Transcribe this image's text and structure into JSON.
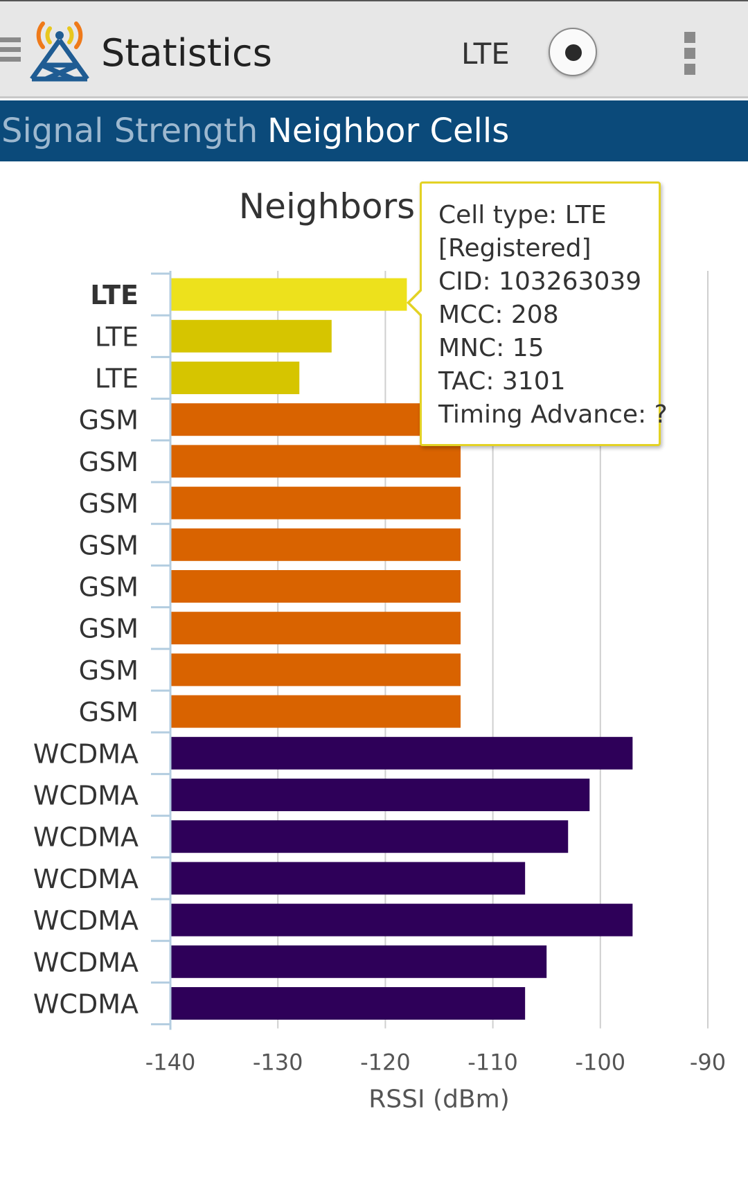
{
  "app_bar": {
    "title": "Statistics",
    "network_type": "LTE",
    "icons": {
      "drawer": "menu-icon",
      "logo": "antenna-tower-icon",
      "record": "record-icon",
      "overflow": "more-vert-icon"
    }
  },
  "tabs": [
    {
      "label": "Signal Strength",
      "selected": false
    },
    {
      "label": "Neighbor Cells",
      "selected": true
    }
  ],
  "tooltip": {
    "lines": [
      "Cell type: LTE",
      "[Registered]",
      "CID: 103263039",
      "MCC: 208",
      "MNC: 15",
      "TAC: 3101",
      "Timing Advance: ?"
    ]
  },
  "chart_data": {
    "type": "bar",
    "orientation": "horizontal",
    "title": "Neighbors",
    "xlabel": "RSSI (dBm)",
    "ylabel": "",
    "xlim": [
      -140,
      -90
    ],
    "x_ticks": [
      "-140",
      "-130",
      "-120",
      "-110",
      "-100",
      "-90"
    ],
    "grid": true,
    "categories": [
      "LTE",
      "LTE",
      "LTE",
      "GSM",
      "GSM",
      "GSM",
      "GSM",
      "GSM",
      "GSM",
      "GSM",
      "GSM",
      "WCDMA",
      "WCDMA",
      "WCDMA",
      "WCDMA",
      "WCDMA",
      "WCDMA",
      "WCDMA"
    ],
    "values": [
      -118,
      -125,
      -128,
      -113,
      -113,
      -113,
      -113,
      -113,
      -113,
      -113,
      -113,
      -97,
      -101,
      -103,
      -107,
      -97,
      -105,
      -107
    ],
    "highlighted_index": 0,
    "colors": {
      "LTE_registered": "#ede11c",
      "LTE": "#d6c500",
      "GSM": "#d96300",
      "WCDMA": "#2e0059",
      "grid": "#cfcfcf",
      "axis": "#b3cde0"
    }
  }
}
